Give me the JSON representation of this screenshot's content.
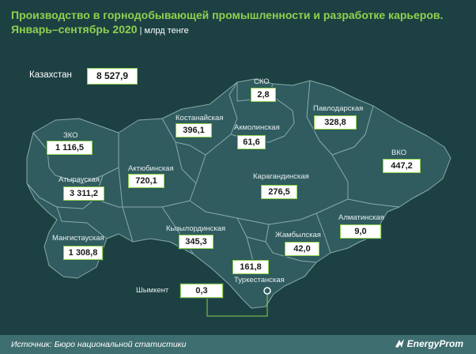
{
  "header": {
    "title_line1": "Производство в горнодобывающей промышленности и разработке карьеров.",
    "title_line2": "Январь–сентябрь 2020",
    "unit": "млрд тенге"
  },
  "total": {
    "label": "Казахстан",
    "value": "8 527,9"
  },
  "regions": {
    "zko": {
      "name": "ЗКО",
      "value": "1 116,5"
    },
    "atyrau": {
      "name": "Атырауская",
      "value": "3 311,2"
    },
    "mangystau": {
      "name": "Мангистауская",
      "value": "1 308,8"
    },
    "aktobe": {
      "name": "Актюбинская",
      "value": "720,1"
    },
    "kostanay": {
      "name": "Костанайская",
      "value": "396,1"
    },
    "sko": {
      "name": "СКО",
      "value": "2,8"
    },
    "akmola": {
      "name": "Акмолинская",
      "value": "61,6"
    },
    "pavlodar": {
      "name": "Павлодарская",
      "value": "328,8"
    },
    "vko": {
      "name": "ВКО",
      "value": "447,2"
    },
    "karaganda": {
      "name": "Карагандинская",
      "value": "276,5"
    },
    "kyzylorda": {
      "name": "Кызылординская",
      "value": "345,3"
    },
    "zhambyl": {
      "name": "Жамбылская",
      "value": "42,0"
    },
    "almaty": {
      "name": "Алматинская",
      "value": "9,0"
    },
    "turkestan": {
      "name": "Туркестанская",
      "value": "161,8"
    },
    "shymkent": {
      "name": "Шымкент",
      "value": "0,3"
    }
  },
  "footer": {
    "source": "Источник: Бюро национальной статистики",
    "brand": "EnergyProm"
  },
  "colors": {
    "background": "#1d4043",
    "region_fill": "#305c60",
    "border": "#8aa9aa",
    "accent": "#8fd14f"
  }
}
